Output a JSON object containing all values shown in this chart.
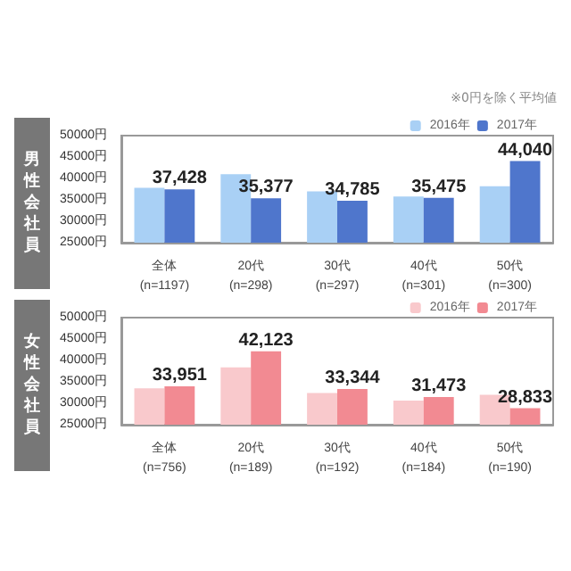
{
  "chart_data": [
    {
      "type": "bar",
      "ylabel": "男性会社員",
      "annotations": [
        "※0円を除く平均値"
      ],
      "categories": [
        "全体\n(n=1197)",
        "20代\n(n=298)",
        "30代\n(n=297)",
        "40代\n(n=301)",
        "50代\n(n=300)"
      ],
      "series": [
        {
          "name": "2016年",
          "color": "#a9d0f5",
          "values": [
            37800,
            41000,
            37000,
            35800,
            38200
          ]
        },
        {
          "name": "2017年",
          "color": "#4f76cc",
          "values": [
            37428,
            35377,
            34785,
            35475,
            44040
          ],
          "value_labels": [
            "37,428",
            "35,377",
            "34,785",
            "35,475",
            "44,040"
          ]
        }
      ],
      "ylim": [
        25000,
        50000
      ],
      "yticks": [
        {
          "value": 25000,
          "label": "25000円"
        },
        {
          "value": 30000,
          "label": "30000円"
        },
        {
          "value": 35000,
          "label": "35000円"
        },
        {
          "value": 40000,
          "label": "40000円"
        },
        {
          "value": 45000,
          "label": "45000円"
        },
        {
          "value": 50000,
          "label": "50000円"
        }
      ],
      "grid": false,
      "legend": "top right"
    },
    {
      "type": "bar",
      "ylabel": "女性会社員",
      "categories": [
        "全体\n(n=756)",
        "20代\n(n=189)",
        "30代\n(n=192)",
        "40代\n(n=184)",
        "50代\n(n=190)"
      ],
      "series": [
        {
          "name": "2016年",
          "color": "#f9c9cc",
          "values": [
            33500,
            38400,
            32400,
            30600,
            32000
          ]
        },
        {
          "name": "2017年",
          "color": "#f28a92",
          "values": [
            33951,
            42123,
            33344,
            31473,
            28833
          ],
          "value_labels": [
            "33,951",
            "42,123",
            "33,344",
            "31,473",
            "28,833"
          ]
        }
      ],
      "ylim": [
        25000,
        50000
      ],
      "yticks": [
        {
          "value": 25000,
          "label": "25000円"
        },
        {
          "value": 30000,
          "label": "30000円"
        },
        {
          "value": 35000,
          "label": "35000円"
        },
        {
          "value": 40000,
          "label": "40000円"
        },
        {
          "value": 45000,
          "label": "45000円"
        },
        {
          "value": 50000,
          "label": "50000円"
        }
      ],
      "grid": false,
      "legend": "top right"
    }
  ]
}
